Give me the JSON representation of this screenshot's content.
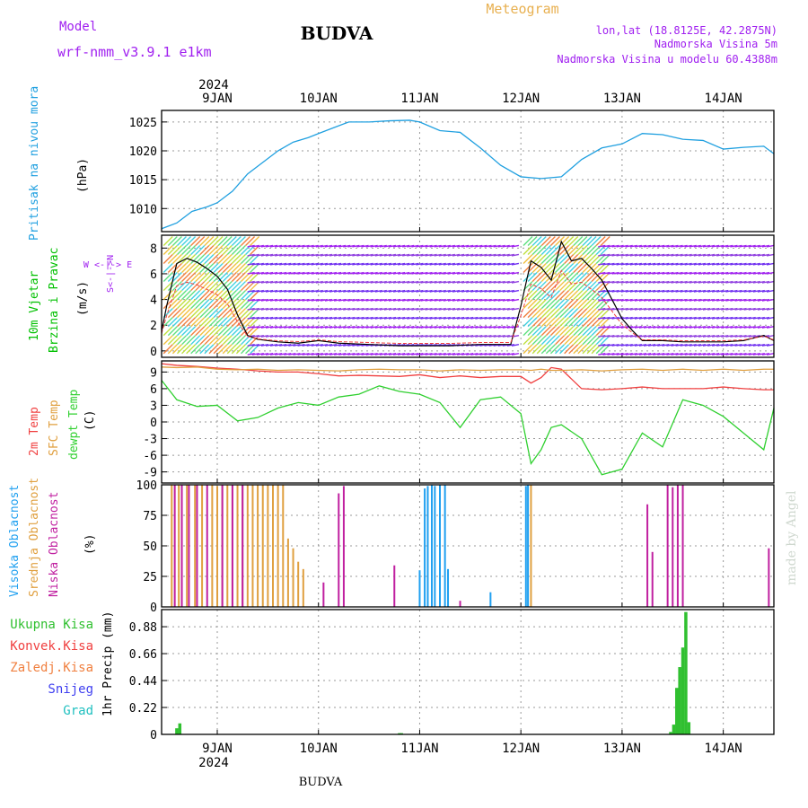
{
  "header": {
    "model_label": "Model",
    "model_name": "wrf-nmm_v3.9.1  e1km",
    "station": "BUDVA",
    "meteogram": "Meteogram",
    "lonlat": "lon,lat (18.8125E, 42.2875N)",
    "elevation": "Nadmorska Visina 5m",
    "model_elevation": "Nadmorska Visina u modelu 60.4388m",
    "footer_station": "BUDVA",
    "watermark": "made by Angel",
    "year": "2024"
  },
  "colors": {
    "purple": "#a020f0",
    "orange": "#e8b050",
    "pressure": "#20a0e0",
    "wind_label": "#00c000",
    "temp2m": "#f04040",
    "sfc": "#e0a040",
    "dewpt": "#30d030",
    "high_cloud": "#20a0f0",
    "mid_cloud": "#e0a040",
    "low_cloud": "#c020a0",
    "total_precip": "#30c030",
    "conv": "#f04040",
    "frozen": "#f08040",
    "snow": "#4040f0",
    "graupel": "#20c0c0"
  },
  "x_axis": {
    "ticks": [
      "9JAN",
      "10JAN",
      "11JAN",
      "12JAN",
      "13JAN",
      "14JAN"
    ],
    "tick_days": [
      1,
      2,
      3,
      4,
      5,
      6
    ],
    "range_days": [
      0.45,
      6.5
    ]
  },
  "panels": {
    "pressure": {
      "label": "Pritisak na nivou mora",
      "unit": "(hPa)",
      "ticks": [
        "1010",
        "1015",
        "1020",
        "1025"
      ]
    },
    "wind": {
      "label1": "10m Vjetar",
      "label2": "Brzina i Pravac",
      "unit": "(m/s)",
      "ticks": [
        "0",
        "2",
        "4",
        "6",
        "8"
      ],
      "compass": "W  <-|->  E",
      "compass_v": "S<-|->N"
    },
    "temp": {
      "label1": "2m Temp",
      "label2": "SFC Temp",
      "label3": "dewpt Temp",
      "unit": "(C)",
      "ticks": [
        "-9",
        "-6",
        "-3",
        "0",
        "3",
        "6",
        "9"
      ]
    },
    "cloud": {
      "label1": "Visoka Oblacnost",
      "label2": "Srednja Oblacnost",
      "label3": "Niska Oblacnost",
      "unit": "(%)",
      "ticks": [
        "0",
        "25",
        "50",
        "75",
        "100"
      ]
    },
    "precip": {
      "legend": [
        "Ukupna Kisa",
        "Konvek.Kisa",
        "Zaledj.Kisa",
        "Snijeg",
        "Grad"
      ],
      "unit": "1hr Precip (mm)",
      "ticks": [
        "0",
        "0.22",
        "0.44",
        "0.66",
        "0.88"
      ]
    }
  },
  "chart_data": [
    {
      "type": "line",
      "title": "Pritisak na nivou mora",
      "ylabel": "(hPa)",
      "ylim": [
        1006,
        1027
      ],
      "x_days": [
        0.45,
        0.6,
        0.75,
        0.9,
        1.0,
        1.15,
        1.3,
        1.45,
        1.6,
        1.75,
        1.9,
        2.0,
        2.15,
        2.3,
        2.5,
        2.7,
        2.9,
        3.0,
        3.2,
        3.4,
        3.6,
        3.8,
        4.0,
        4.2,
        4.4,
        4.6,
        4.8,
        5.0,
        5.2,
        5.4,
        5.6,
        5.8,
        6.0,
        6.2,
        6.4,
        6.5
      ],
      "values": [
        1006.5,
        1007.5,
        1009.5,
        1010.3,
        1011,
        1013,
        1016,
        1018,
        1020,
        1021.5,
        1022.3,
        1023,
        1024,
        1025,
        1025,
        1025.2,
        1025.3,
        1025,
        1023.5,
        1023.2,
        1020.5,
        1017.5,
        1015.5,
        1015.2,
        1015.5,
        1018.5,
        1020.5,
        1021.2,
        1023,
        1022.8,
        1022,
        1021.8,
        1020.3,
        1020.6,
        1020.8,
        1019.5
      ],
      "series": [
        {
          "name": "Pritisak na nivou mora",
          "color": "#20a0e0"
        }
      ],
      "grid": true
    },
    {
      "type": "line",
      "title": "10m Vjetar Brzina i Pravac",
      "ylabel": "(m/s)",
      "ylim": [
        -0.5,
        9
      ],
      "x_days": [
        0.45,
        0.5,
        0.6,
        0.7,
        0.8,
        0.9,
        1.0,
        1.1,
        1.2,
        1.3,
        1.4,
        1.6,
        1.8,
        2.0,
        2.2,
        2.5,
        2.8,
        3.0,
        3.3,
        3.6,
        3.9,
        4.0,
        4.1,
        4.2,
        4.3,
        4.4,
        4.5,
        4.6,
        4.7,
        4.8,
        4.9,
        5.0,
        5.1,
        5.2,
        5.4,
        5.6,
        5.8,
        6.0,
        6.2,
        6.4,
        6.5
      ],
      "values": [
        1.5,
        3.5,
        6.8,
        7.2,
        6.9,
        6.4,
        5.8,
        4.8,
        2.8,
        1.2,
        0.9,
        0.7,
        0.6,
        0.8,
        0.6,
        0.5,
        0.4,
        0.4,
        0.4,
        0.5,
        0.5,
        3.5,
        7.0,
        6.5,
        5.5,
        8.5,
        7.0,
        7.2,
        6.4,
        5.5,
        4.0,
        2.5,
        1.6,
        0.8,
        0.8,
        0.7,
        0.7,
        0.7,
        0.8,
        1.2,
        0.8
      ],
      "series": [
        {
          "name": "10m Vjetar",
          "color": "#000000"
        }
      ],
      "grid": true
    },
    {
      "type": "line",
      "title": "2m Temp / SFC Temp / dewpt Temp",
      "ylabel": "(C)",
      "ylim": [
        -11,
        11
      ],
      "x_days": [
        0.45,
        0.6,
        0.8,
        1.0,
        1.2,
        1.4,
        1.6,
        1.8,
        2.0,
        2.2,
        2.4,
        2.6,
        2.8,
        3.0,
        3.2,
        3.4,
        3.6,
        3.8,
        4.0,
        4.1,
        4.2,
        4.3,
        4.4,
        4.6,
        4.8,
        5.0,
        5.2,
        5.4,
        5.6,
        5.8,
        6.0,
        6.2,
        6.4,
        6.5
      ],
      "series": [
        {
          "name": "2m Temp",
          "color": "#f04040",
          "values": [
            10.5,
            10.2,
            10,
            9.7,
            9.5,
            9.2,
            9.0,
            9.0,
            8.7,
            8.3,
            8.4,
            8.3,
            8.2,
            8.5,
            8.0,
            8.3,
            8.0,
            8.2,
            8.2,
            7.0,
            8.0,
            9.8,
            9.5,
            6.0,
            5.8,
            6.0,
            6.3,
            6.0,
            6.0,
            6.0,
            6.3,
            6.0,
            5.8,
            5.8
          ]
        },
        {
          "name": "SFC Temp",
          "color": "#e0a040",
          "values": [
            9.9,
            9.8,
            9.9,
            9.5,
            9.4,
            9.5,
            9.3,
            9.4,
            9.3,
            9.2,
            9.4,
            9.5,
            9.4,
            9.4,
            9.2,
            9.4,
            9.3,
            9.4,
            9.4,
            9.3,
            9.5,
            9.3,
            9.3,
            9.4,
            9.2,
            9.4,
            9.5,
            9.3,
            9.5,
            9.3,
            9.5,
            9.3,
            9.5,
            9.5
          ]
        },
        {
          "name": "dewpt Temp",
          "color": "#30d030",
          "values": [
            7.5,
            4.0,
            2.8,
            3.0,
            0.2,
            0.8,
            2.5,
            3.5,
            3.0,
            4.5,
            5.0,
            6.5,
            5.5,
            5.0,
            3.5,
            -1.0,
            4.0,
            4.5,
            1.5,
            -7.5,
            -5.0,
            -1.0,
            -0.5,
            -3.0,
            -9.5,
            -8.5,
            -2.0,
            -4.5,
            4.0,
            3.0,
            1.0,
            -2.0,
            -5.0,
            2.5
          ]
        }
      ],
      "grid": true
    },
    {
      "type": "bar",
      "title": "Visoka / Srednja / Niska Oblacnost",
      "ylabel": "(%)",
      "ylim": [
        0,
        100
      ],
      "series": [
        {
          "name": "Visoka Oblacnost",
          "color": "#20a0f0",
          "x_days": [
            1.0,
            3.0,
            3.05,
            3.08,
            3.12,
            3.15,
            3.2,
            3.25,
            3.28,
            3.7,
            4.05,
            4.07
          ],
          "values": [
            23,
            30,
            97,
            99,
            100,
            99,
            100,
            100,
            31,
            12,
            99,
            100
          ]
        },
        {
          "name": "Srednja Oblacnost",
          "color": "#e0a040",
          "x_days": [
            0.55,
            0.62,
            0.7,
            0.78,
            0.85,
            0.95,
            1.0,
            1.05,
            1.1,
            1.15,
            1.2,
            1.25,
            1.3,
            1.35,
            1.4,
            1.45,
            1.5,
            1.55,
            1.6,
            1.65,
            1.7,
            1.75,
            1.8,
            1.85,
            4.1
          ],
          "values": [
            100,
            100,
            100,
            100,
            100,
            100,
            99,
            100,
            100,
            100,
            100,
            100,
            100,
            100,
            100,
            100,
            100,
            100,
            100,
            100,
            56,
            48,
            37,
            31,
            100
          ]
        },
        {
          "name": "Niska Oblacnost",
          "color": "#c020a0",
          "x_days": [
            0.58,
            0.65,
            0.72,
            0.8,
            0.9,
            1.05,
            1.15,
            1.25,
            2.05,
            2.2,
            2.25,
            2.75,
            3.4,
            5.25,
            5.3,
            5.45,
            5.5,
            5.55,
            5.6,
            6.45
          ],
          "values": [
            100,
            100,
            100,
            100,
            100,
            100,
            100,
            100,
            20,
            93,
            99,
            34,
            5,
            84,
            45,
            100,
            98,
            100,
            100,
            48
          ]
        }
      ],
      "grid": true
    },
    {
      "type": "bar",
      "title": "1hr Precip",
      "ylabel": "1hr Precip (mm)",
      "ylim": [
        0,
        1.02
      ],
      "series": [
        {
          "name": "Ukupna Kisa",
          "color": "#30c030",
          "x_days": [
            0.6,
            0.63,
            2.8,
            2.82,
            5.48,
            5.51,
            5.54,
            5.57,
            5.6,
            5.63,
            5.66
          ],
          "values": [
            0.05,
            0.09,
            0.01,
            0.01,
            0.02,
            0.08,
            0.38,
            0.55,
            0.71,
            1.0,
            0.1
          ]
        }
      ],
      "grid": true
    }
  ]
}
